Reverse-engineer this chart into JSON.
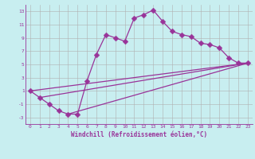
{
  "xlabel": "Windchill (Refroidissement éolien,°C)",
  "background_color": "#c8eef0",
  "line_color": "#993399",
  "grid_color": "#b0b0b0",
  "xlim": [
    -0.5,
    23.5
  ],
  "ylim": [
    -4,
    14
  ],
  "xticks": [
    0,
    1,
    2,
    3,
    4,
    5,
    6,
    7,
    8,
    9,
    10,
    11,
    12,
    13,
    14,
    15,
    16,
    17,
    18,
    19,
    20,
    21,
    22,
    23
  ],
  "yticks": [
    -3,
    -1,
    1,
    3,
    5,
    7,
    9,
    11,
    13
  ],
  "hours": [
    0,
    1,
    2,
    3,
    4,
    5,
    6,
    7,
    8,
    9,
    10,
    11,
    12,
    13,
    14,
    15,
    16,
    17,
    18,
    19,
    20,
    21,
    22,
    23
  ],
  "main_line": [
    1,
    0,
    -1,
    -2,
    -2.5,
    -2.5,
    2.5,
    6.5,
    9.5,
    9.0,
    8.5,
    12.0,
    12.5,
    13.2,
    11.5,
    10.0,
    9.5,
    9.2,
    8.2,
    8.0,
    7.5,
    6.0,
    5.2,
    5.2
  ],
  "trend_lines": [
    [
      0,
      1.0,
      23,
      5.2
    ],
    [
      1,
      0.0,
      23,
      5.2
    ],
    [
      4,
      -2.5,
      23,
      5.2
    ]
  ],
  "marker_size": 3.5,
  "linewidth": 0.9,
  "tick_fontsize": 4.5,
  "xlabel_fontsize": 5.5
}
